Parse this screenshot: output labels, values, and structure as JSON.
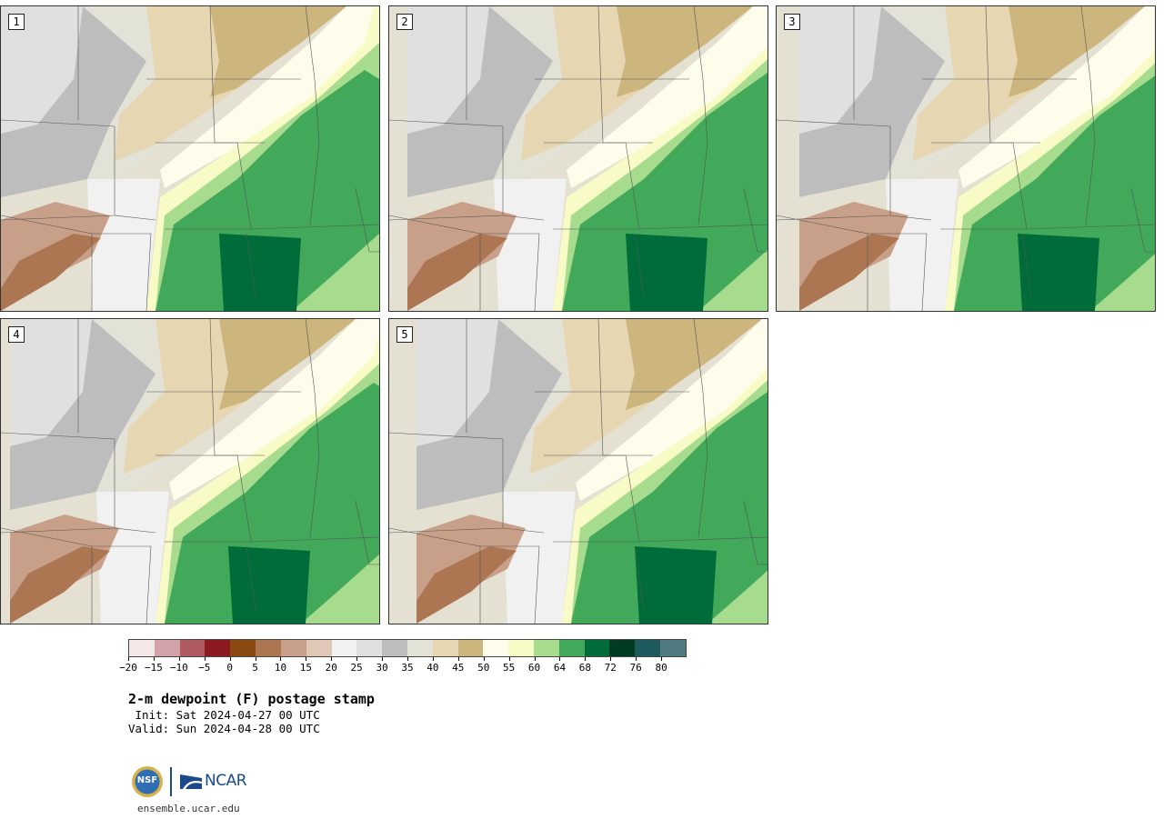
{
  "panels": [
    {
      "label": "1"
    },
    {
      "label": "2"
    },
    {
      "label": "3"
    },
    {
      "label": "4"
    },
    {
      "label": "5"
    }
  ],
  "colorbar": {
    "colors": [
      "#f3e7e8",
      "#d3a2a8",
      "#b05b63",
      "#8b1a22",
      "#8a4a12",
      "#ad7652",
      "#c8a08a",
      "#e0c7b8",
      "#f1f1f1",
      "#e0e0e0",
      "#bdbdbd",
      "#e3e2d6",
      "#e6d6b2",
      "#cdb57e",
      "#fefdeb",
      "#f8fbc5",
      "#a7dc8e",
      "#42a85a",
      "#006c3a",
      "#003b22",
      "#1f5b5e",
      "#507b80"
    ],
    "tick_labels": [
      "−20",
      "−15",
      "−10",
      "−5",
      "0",
      "5",
      "10",
      "15",
      "20",
      "25",
      "30",
      "35",
      "40",
      "45",
      "50",
      "55",
      "60",
      "64",
      "68",
      "72",
      "76",
      "80"
    ]
  },
  "title": "2-m dewpoint (F) postage stamp",
  "init": " Init: Sat 2024-04-27 00 UTC",
  "valid": "Valid: Sun 2024-04-28 00 UTC",
  "logos": {
    "nsf": "NSF",
    "ncar": "NCAR"
  },
  "site": "ensemble.ucar.edu"
}
